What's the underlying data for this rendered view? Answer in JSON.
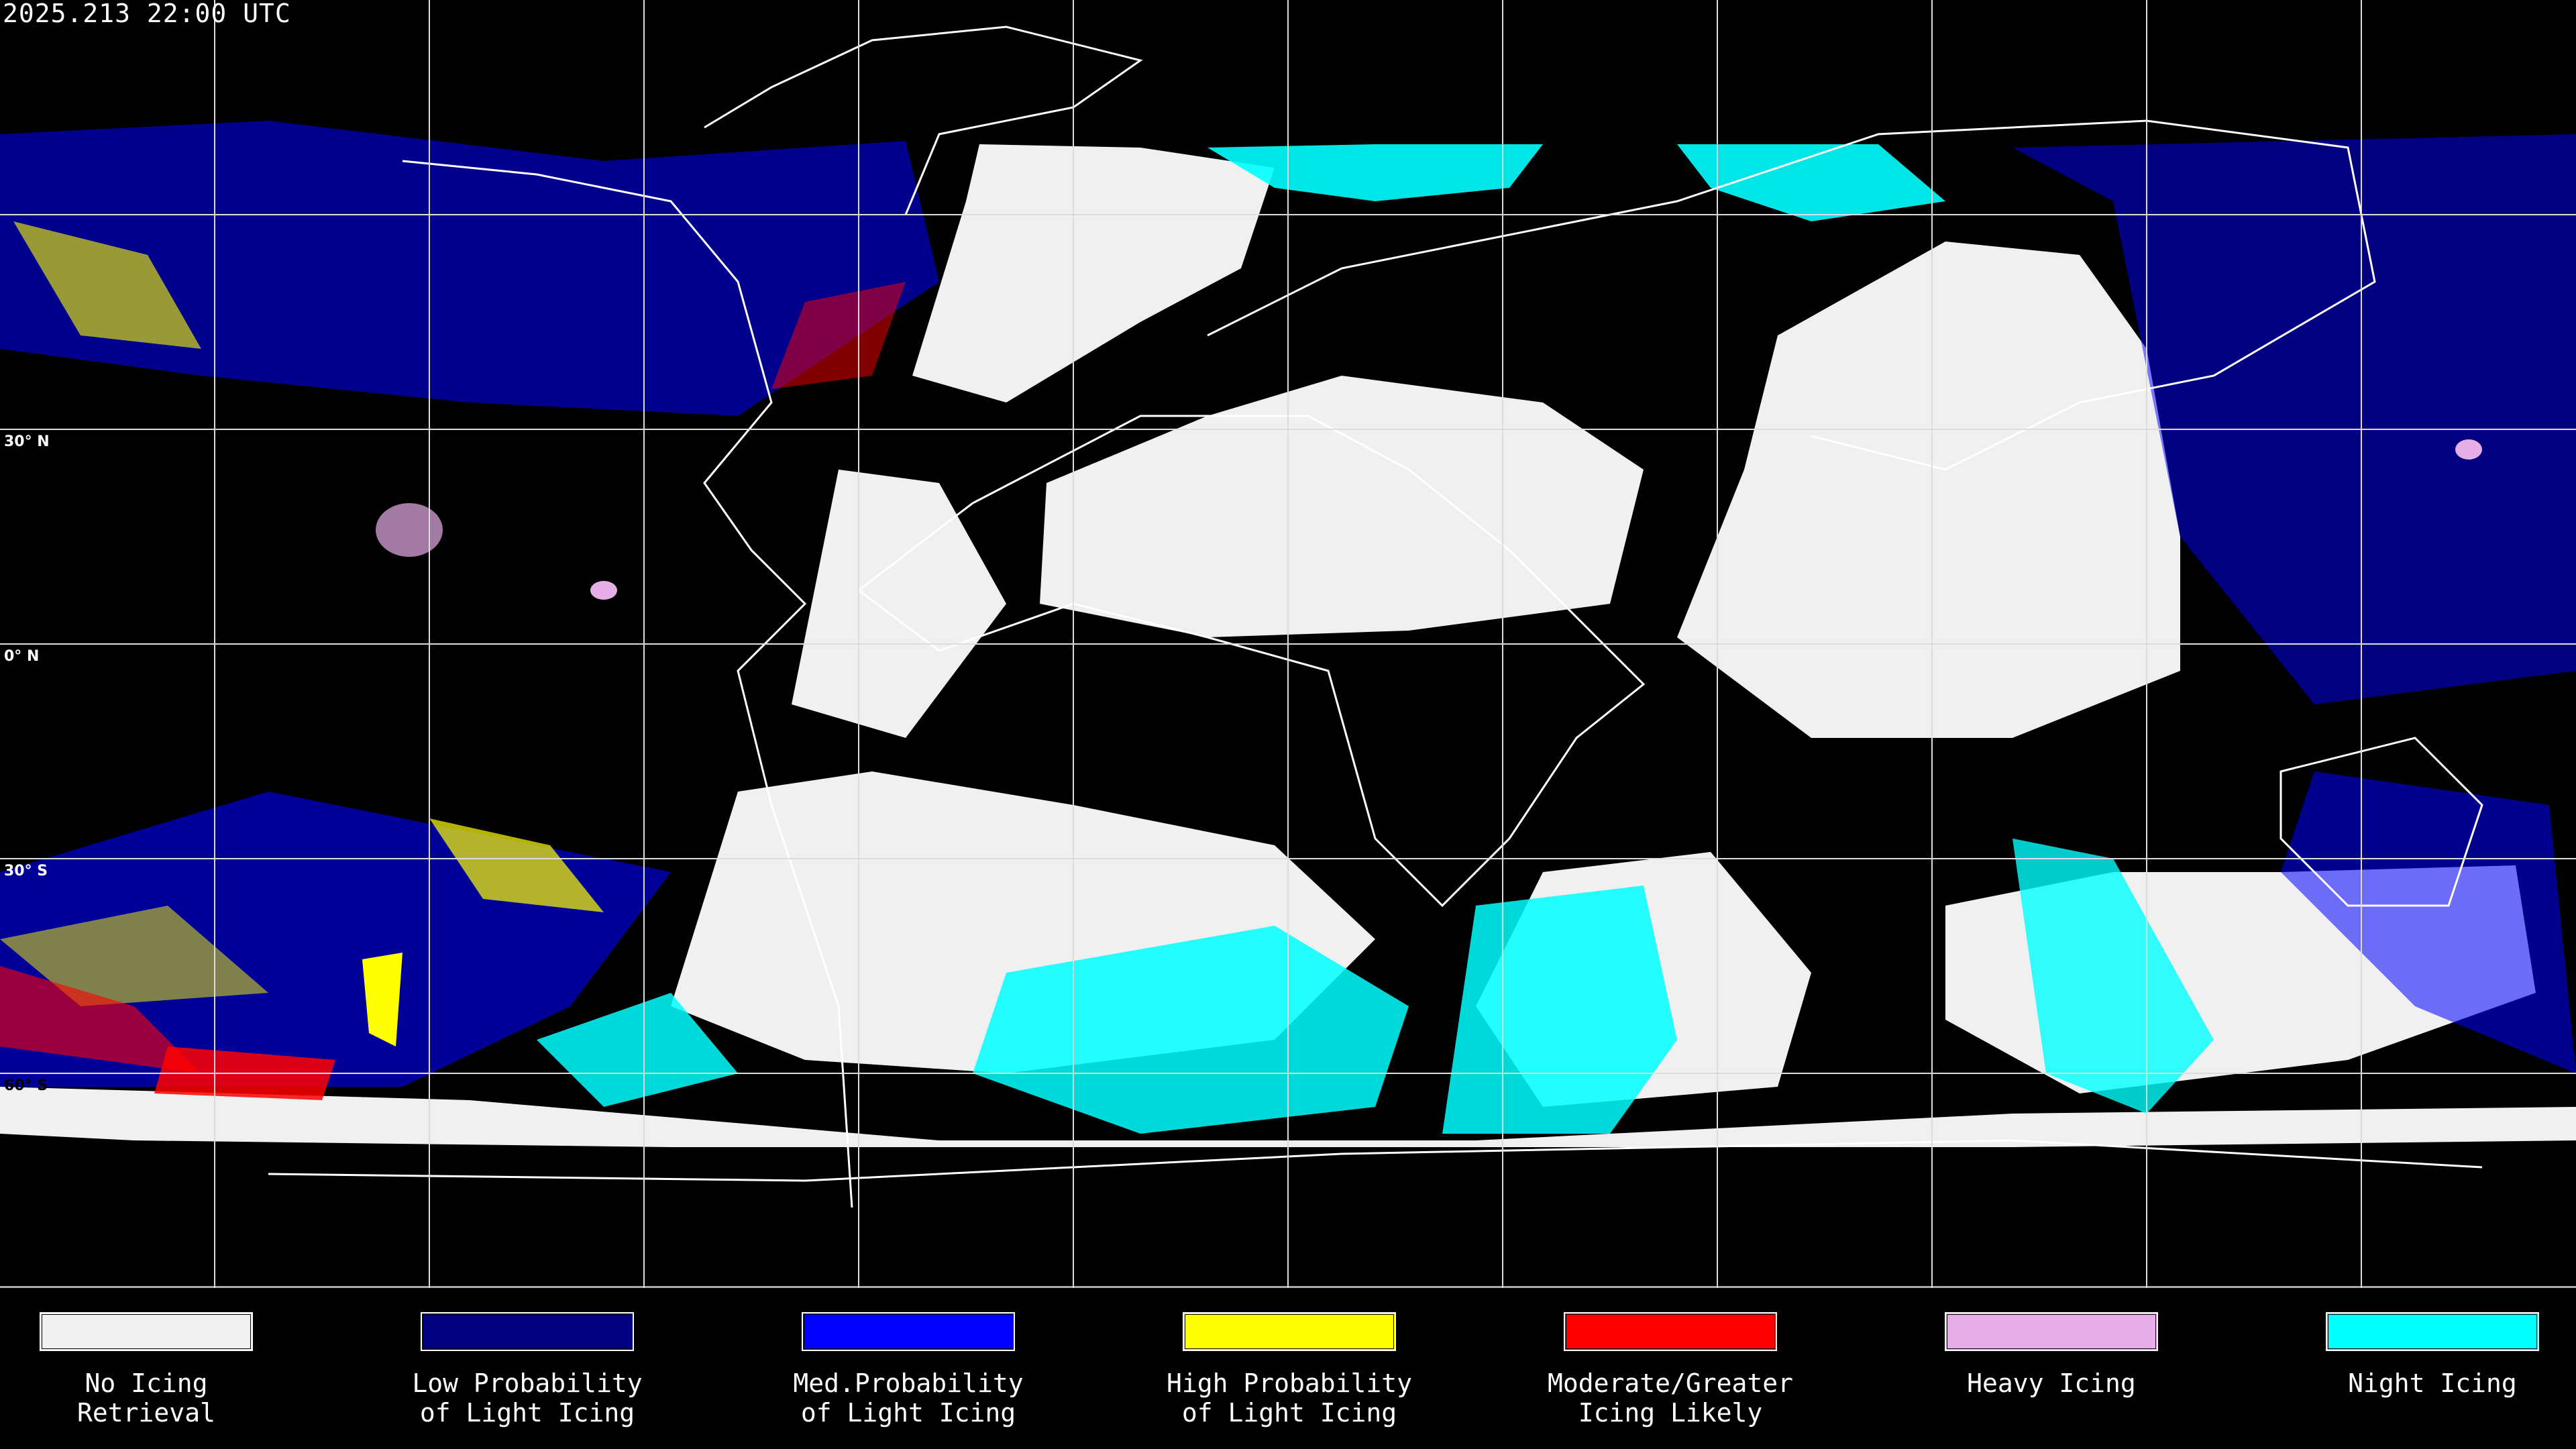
{
  "header": {
    "timestamp": "2025.213 22:00 UTC"
  },
  "map": {
    "projection": "equirectangular global",
    "grid": true,
    "gridline_spacing_degrees": 30,
    "latitude_labels": [
      "30° N",
      "0° N",
      "30° S",
      "60° S"
    ],
    "background_color": "#000000",
    "coastline_color": "#ffffff"
  },
  "legend": [
    {
      "line1": "No Icing",
      "line2": "Retrieval",
      "color": "#f0f0f0"
    },
    {
      "line1": "Low Probability",
      "line2": "of Light Icing",
      "color": "#000080"
    },
    {
      "line1": "Med.Probability",
      "line2": "of Light Icing",
      "color": "#0000ff"
    },
    {
      "line1": "High Probability",
      "line2": "of Light Icing",
      "color": "#ffff00"
    },
    {
      "line1": "Moderate/Greater",
      "line2": "Icing Likely",
      "color": "#ff0000"
    },
    {
      "line1": "Heavy Icing",
      "line2": "",
      "color": "#e8aee8"
    },
    {
      "line1": "Night Icing",
      "line2": "",
      "color": "#00ffff"
    }
  ]
}
